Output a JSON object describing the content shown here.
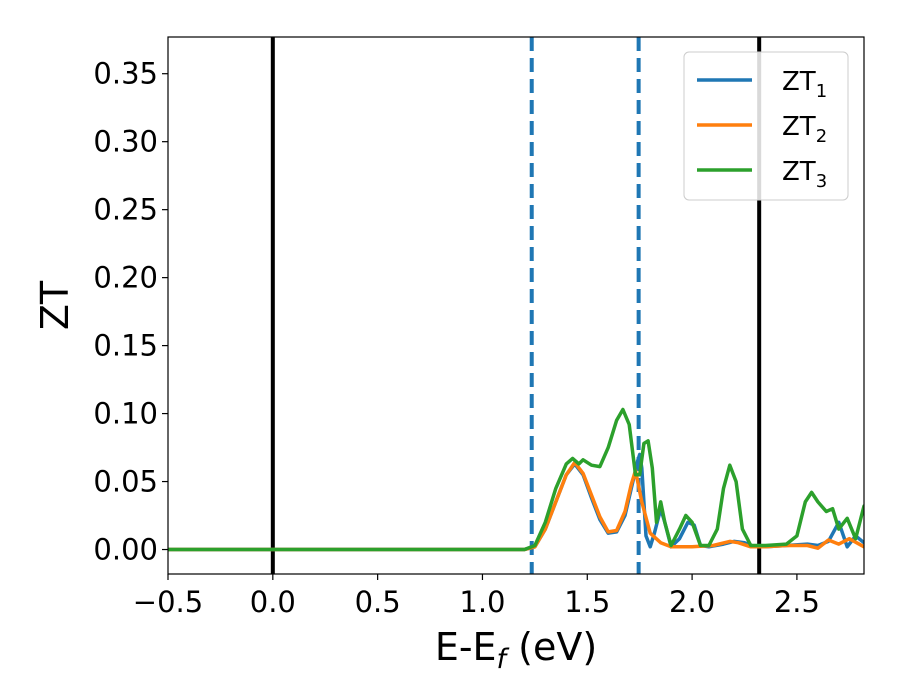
{
  "chart_data": {
    "type": "line",
    "xlabel": {
      "main": "E-E",
      "sub": "f",
      "suffix": " (eV)"
    },
    "ylabel": "ZT",
    "xlim": [
      -0.5,
      2.82
    ],
    "ylim": [
      -0.018,
      0.377
    ],
    "xticks": [
      -0.5,
      0.0,
      0.5,
      1.0,
      1.5,
      2.0,
      2.5
    ],
    "xtick_labels": [
      "−0.5",
      "0.0",
      "0.5",
      "1.0",
      "1.5",
      "2.0",
      "2.5"
    ],
    "yticks": [
      0.0,
      0.05,
      0.1,
      0.15,
      0.2,
      0.25,
      0.3,
      0.35
    ],
    "ytick_labels": [
      "0.00",
      "0.05",
      "0.10",
      "0.15",
      "0.20",
      "0.25",
      "0.30",
      "0.35"
    ],
    "grid": false,
    "legend_position": "top-right",
    "vertical_lines": [
      {
        "x": 0.0,
        "style": "solid",
        "color": "#000000"
      },
      {
        "x": 2.32,
        "style": "solid",
        "color": "#000000"
      },
      {
        "x": 1.235,
        "style": "dashed",
        "color": "#1f77b4"
      },
      {
        "x": 1.745,
        "style": "dashed",
        "color": "#1f77b4"
      }
    ],
    "series": [
      {
        "name": "ZT",
        "name_sub": "1",
        "color": "#1f77b4",
        "points": [
          [
            -0.5,
            0
          ],
          [
            1.2,
            0
          ],
          [
            1.25,
            0.002
          ],
          [
            1.3,
            0.015
          ],
          [
            1.35,
            0.035
          ],
          [
            1.4,
            0.055
          ],
          [
            1.44,
            0.063
          ],
          [
            1.48,
            0.055
          ],
          [
            1.52,
            0.038
          ],
          [
            1.56,
            0.022
          ],
          [
            1.6,
            0.012
          ],
          [
            1.64,
            0.013
          ],
          [
            1.68,
            0.025
          ],
          [
            1.71,
            0.045
          ],
          [
            1.74,
            0.065
          ],
          [
            1.75,
            0.07
          ],
          [
            1.76,
            0.06
          ],
          [
            1.78,
            0.01
          ],
          [
            1.8,
            0.002
          ],
          [
            1.82,
            0.012
          ],
          [
            1.85,
            0.03
          ],
          [
            1.87,
            0.02
          ],
          [
            1.9,
            0.002
          ],
          [
            1.94,
            0.008
          ],
          [
            1.98,
            0.02
          ],
          [
            2.01,
            0.018
          ],
          [
            2.04,
            0.003
          ],
          [
            2.08,
            0.002
          ],
          [
            2.15,
            0.004
          ],
          [
            2.2,
            0.006
          ],
          [
            2.25,
            0.005
          ],
          [
            2.3,
            0.002
          ],
          [
            2.35,
            0.002
          ],
          [
            2.45,
            0.003
          ],
          [
            2.55,
            0.004
          ],
          [
            2.6,
            0.003
          ],
          [
            2.65,
            0.006
          ],
          [
            2.7,
            0.02
          ],
          [
            2.74,
            0.002
          ],
          [
            2.78,
            0.01
          ],
          [
            2.82,
            0.005
          ]
        ]
      },
      {
        "name": "ZT",
        "name_sub": "2",
        "color": "#ff7f0e",
        "points": [
          [
            -0.5,
            0
          ],
          [
            1.2,
            0
          ],
          [
            1.25,
            0.002
          ],
          [
            1.3,
            0.015
          ],
          [
            1.35,
            0.035
          ],
          [
            1.4,
            0.055
          ],
          [
            1.44,
            0.064
          ],
          [
            1.48,
            0.056
          ],
          [
            1.52,
            0.04
          ],
          [
            1.56,
            0.024
          ],
          [
            1.6,
            0.013
          ],
          [
            1.64,
            0.014
          ],
          [
            1.68,
            0.028
          ],
          [
            1.71,
            0.048
          ],
          [
            1.73,
            0.058
          ],
          [
            1.76,
            0.035
          ],
          [
            1.8,
            0.012
          ],
          [
            1.85,
            0.005
          ],
          [
            1.9,
            0.002
          ],
          [
            2.0,
            0.002
          ],
          [
            2.1,
            0.003
          ],
          [
            2.18,
            0.006
          ],
          [
            2.22,
            0.005
          ],
          [
            2.28,
            0.002
          ],
          [
            2.35,
            0.002
          ],
          [
            2.45,
            0.003
          ],
          [
            2.55,
            0.003
          ],
          [
            2.6,
            0.001
          ],
          [
            2.65,
            0.007
          ],
          [
            2.7,
            0.004
          ],
          [
            2.75,
            0.008
          ],
          [
            2.82,
            0.002
          ]
        ]
      },
      {
        "name": "ZT",
        "name_sub": "3",
        "color": "#2ca02c",
        "points": [
          [
            -0.5,
            0
          ],
          [
            1.2,
            0
          ],
          [
            1.25,
            0.003
          ],
          [
            1.3,
            0.02
          ],
          [
            1.35,
            0.045
          ],
          [
            1.4,
            0.063
          ],
          [
            1.43,
            0.067
          ],
          [
            1.46,
            0.063
          ],
          [
            1.48,
            0.066
          ],
          [
            1.52,
            0.062
          ],
          [
            1.56,
            0.061
          ],
          [
            1.6,
            0.075
          ],
          [
            1.64,
            0.095
          ],
          [
            1.67,
            0.103
          ],
          [
            1.7,
            0.092
          ],
          [
            1.73,
            0.055
          ],
          [
            1.75,
            0.055
          ],
          [
            1.77,
            0.078
          ],
          [
            1.79,
            0.08
          ],
          [
            1.81,
            0.06
          ],
          [
            1.83,
            0.02
          ],
          [
            1.85,
            0.035
          ],
          [
            1.87,
            0.02
          ],
          [
            1.9,
            0.003
          ],
          [
            1.94,
            0.015
          ],
          [
            1.97,
            0.025
          ],
          [
            2.0,
            0.02
          ],
          [
            2.04,
            0.003
          ],
          [
            2.08,
            0.003
          ],
          [
            2.12,
            0.015
          ],
          [
            2.15,
            0.045
          ],
          [
            2.18,
            0.062
          ],
          [
            2.21,
            0.05
          ],
          [
            2.24,
            0.015
          ],
          [
            2.28,
            0.003
          ],
          [
            2.35,
            0.003
          ],
          [
            2.45,
            0.004
          ],
          [
            2.5,
            0.01
          ],
          [
            2.54,
            0.035
          ],
          [
            2.57,
            0.042
          ],
          [
            2.6,
            0.035
          ],
          [
            2.64,
            0.028
          ],
          [
            2.67,
            0.03
          ],
          [
            2.7,
            0.015
          ],
          [
            2.74,
            0.023
          ],
          [
            2.78,
            0.008
          ],
          [
            2.82,
            0.032
          ]
        ]
      }
    ]
  }
}
